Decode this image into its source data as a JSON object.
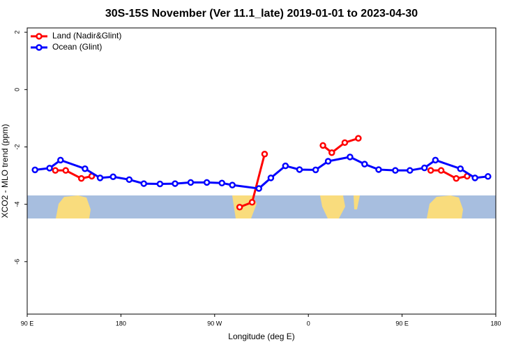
{
  "chart_data": {
    "type": "line",
    "title": "30S-15S November (Ver 11.1_late)   2019-01-01 to 2023-04-30",
    "x_label": "Longitude (deg E)",
    "y_label": "XCO2 - MLO trend (ppm)",
    "xlim": [
      90,
      540
    ],
    "ylim": [
      2.15,
      -7.83
    ],
    "xticks": [
      {
        "value": 90,
        "label": "90 E"
      },
      180,
      {
        "value": 270,
        "label": "90 W"
      },
      {
        "value": 360,
        "label": "0"
      },
      {
        "value": 450,
        "label": "90 E"
      },
      {
        "value": 540,
        "label": "180"
      }
    ],
    "yticks": [
      2,
      0,
      -2,
      -4,
      -6
    ],
    "legend": "top-left",
    "series": [
      {
        "name": "Land (Nadir&Glint)",
        "color": "#ff0000",
        "x": [
          117,
          127,
          142,
          152,
          null,
          294,
          306,
          318,
          null,
          374,
          382.5,
          395,
          408,
          null,
          477.5,
          487.5,
          502,
          512.5
        ],
        "values": [
          -2.82,
          -2.82,
          -3.1,
          -3.02,
          null,
          -4.1,
          -3.93,
          -2.25,
          null,
          -1.95,
          -2.2,
          -1.85,
          -1.7,
          null,
          -2.82,
          -2.82,
          -3.1,
          -3.02
        ]
      },
      {
        "name": "Ocean (Glint)",
        "color": "#0000ff",
        "x": [
          97.5,
          111.5,
          122,
          145.5,
          160,
          172.5,
          188,
          202,
          217.5,
          232,
          247,
          262.5,
          277,
          287,
          312.5,
          324,
          338,
          351.5,
          367,
          379,
          400,
          414,
          427.5,
          443.5,
          457.5,
          471.5,
          482,
          506,
          520,
          532.5
        ],
        "values": [
          -2.8,
          -2.74,
          -2.46,
          -2.76,
          -3.08,
          -3.04,
          -3.14,
          -3.28,
          -3.29,
          -3.28,
          -3.24,
          -3.24,
          -3.26,
          -3.33,
          -3.45,
          -3.08,
          -2.66,
          -2.79,
          -2.8,
          -2.5,
          -2.35,
          -2.6,
          -2.79,
          -2.82,
          -2.82,
          -2.73,
          -2.46,
          -2.76,
          -3.08,
          -3.03
        ]
      }
    ]
  }
}
